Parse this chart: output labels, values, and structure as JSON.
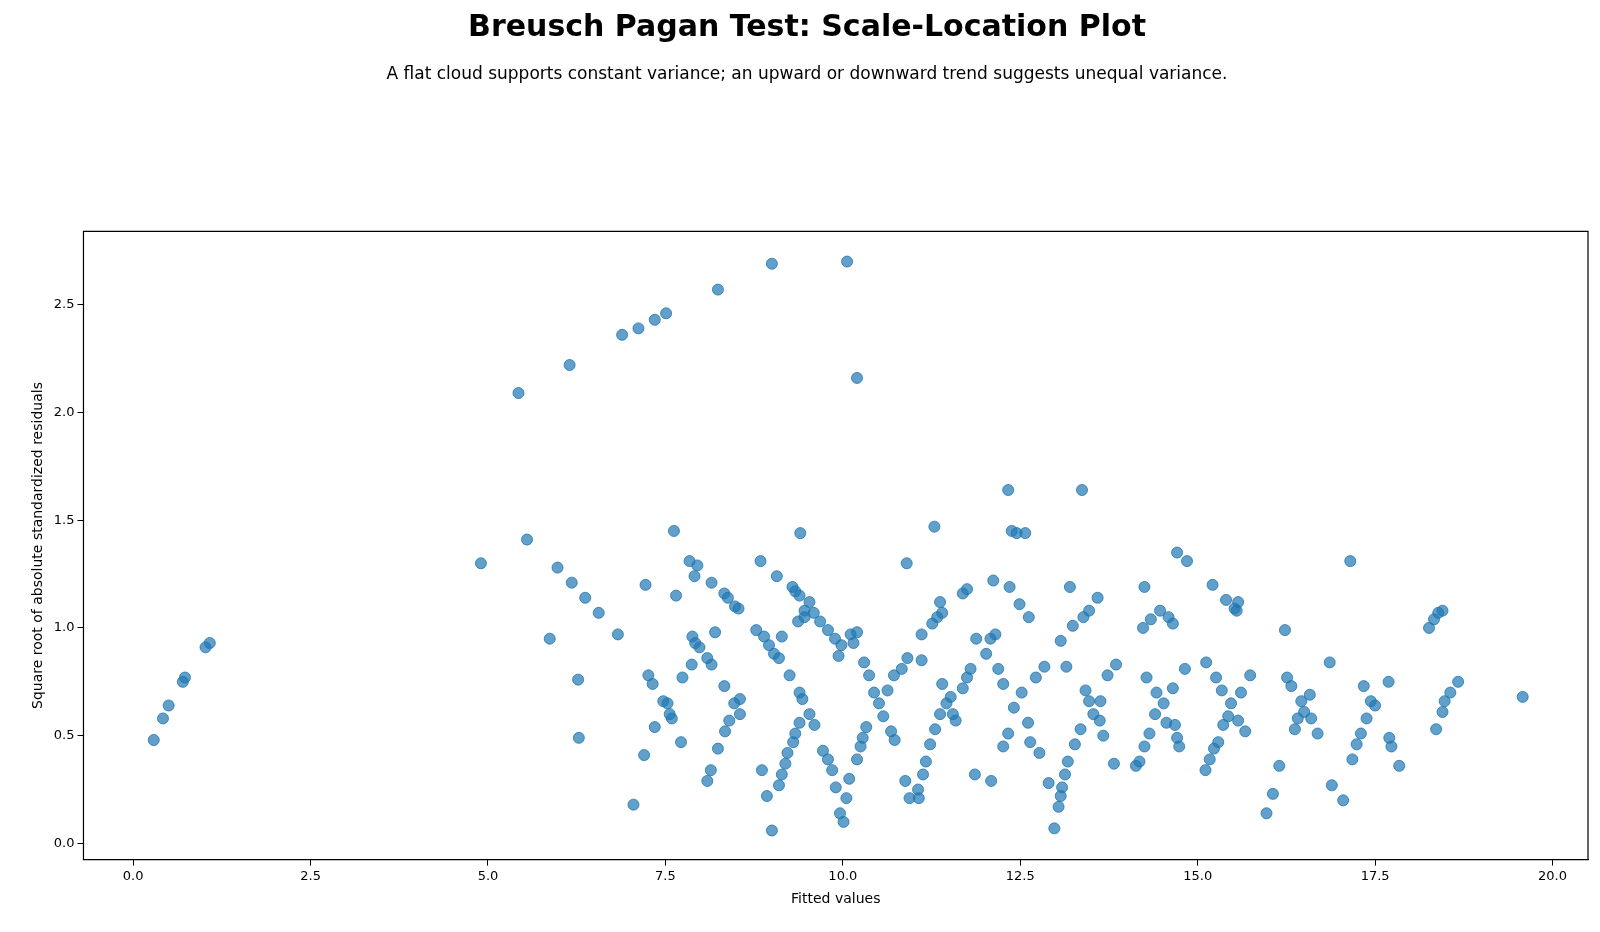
{
  "chart_data": {
    "type": "scatter",
    "title": "Breusch Pagan Test: Scale-Location Plot",
    "subtitle": "A flat cloud supports constant variance; an upward or downward trend suggests unequal variance.",
    "xlabel": "Fitted values",
    "ylabel": "Square root of absolute standardized residuals",
    "marker": "circle",
    "xlim": [
      -0.7,
      20.5
    ],
    "ylim": [
      -0.075,
      2.84
    ],
    "xticks": [
      {
        "value": 0,
        "label": "0.0"
      },
      {
        "value": 2.5,
        "label": "2.5"
      },
      {
        "value": 5,
        "label": "5.0"
      },
      {
        "value": 7.5,
        "label": "7.5"
      },
      {
        "value": 10,
        "label": "10.0"
      },
      {
        "value": 12.5,
        "label": "12.5"
      },
      {
        "value": 15,
        "label": "15.0"
      },
      {
        "value": 17.5,
        "label": "17.5"
      },
      {
        "value": 20,
        "label": "20.0"
      }
    ],
    "yticks": [
      {
        "value": 0,
        "label": "0.0"
      },
      {
        "value": 0.5,
        "label": "0.5"
      },
      {
        "value": 1,
        "label": "1.0"
      },
      {
        "value": 1.5,
        "label": "1.5"
      },
      {
        "value": 2,
        "label": "2.0"
      },
      {
        "value": 2.5,
        "label": "2.5"
      }
    ],
    "series": [
      {
        "color": "#1f77b4",
        "x": [
          0.29,
          0.42,
          0.5,
          0.7,
          0.73,
          1.02,
          1.08,
          4.9,
          5.43,
          5.55,
          5.87,
          5.98,
          6.15,
          6.18,
          6.27,
          6.28,
          6.37,
          6.56,
          6.83,
          6.89,
          7.05,
          7.12,
          7.22,
          7.2,
          7.26,
          7.32,
          7.35,
          7.35,
          7.47,
          7.51,
          7.53,
          7.56,
          7.59,
          7.62,
          7.65,
          7.72,
          7.74,
          7.84,
          7.87,
          7.88,
          7.91,
          7.95,
          7.92,
          7.98,
          8.09,
          8.09,
          8.14,
          8.15,
          8.2,
          8.15,
          8.24,
          8.24,
          8.33,
          8.33,
          8.38,
          8.34,
          8.4,
          8.47,
          8.48,
          8.53,
          8.55,
          8.55,
          8.78,
          8.84,
          8.86,
          8.93,
          8.89,
          8.96,
          9.0,
          9.0,
          9.03,
          9.1,
          9.07,
          9.1,
          9.14,
          9.14,
          9.19,
          9.22,
          9.25,
          9.29,
          9.3,
          9.33,
          9.33,
          9.37,
          9.39,
          9.39,
          9.4,
          9.39,
          9.43,
          9.46,
          9.46,
          9.53,
          9.53,
          9.59,
          9.6,
          9.68,
          9.72,
          9.79,
          9.79,
          9.85,
          9.89,
          9.9,
          9.94,
          9.96,
          9.98,
          10.01,
          10.06,
          10.05,
          10.09,
          10.11,
          10.15,
          10.2,
          10.2,
          10.2,
          10.25,
          10.28,
          10.33,
          10.3,
          10.37,
          10.44,
          10.51,
          10.57,
          10.63,
          10.68,
          10.73,
          10.72,
          10.83,
          10.88,
          10.9,
          10.94,
          10.91,
          11.06,
          11.07,
          11.11,
          11.13,
          11.17,
          11.11,
          11.23,
          11.26,
          11.29,
          11.3,
          11.33,
          11.37,
          11.37,
          11.4,
          11.4,
          11.46,
          11.52,
          11.55,
          11.59,
          11.69,
          11.75,
          11.69,
          11.75,
          11.8,
          11.86,
          11.88,
          12.02,
          12.09,
          12.08,
          12.12,
          12.15,
          12.19,
          12.26,
          12.26,
          12.33,
          12.35,
          12.38,
          12.45,
          12.41,
          12.33,
          12.49,
          12.57,
          12.52,
          12.61,
          12.62,
          12.64,
          12.72,
          12.77,
          12.84,
          12.9,
          12.98,
          13.04,
          13.07,
          13.09,
          13.07,
          13.13,
          13.15,
          13.17,
          13.2,
          13.24,
          13.27,
          13.35,
          13.39,
          13.37,
          13.42,
          13.47,
          13.47,
          13.53,
          13.59,
          13.62,
          13.63,
          13.67,
          13.73,
          13.82,
          13.85,
          14.13,
          14.18,
          14.23,
          14.25,
          14.25,
          14.28,
          14.34,
          14.32,
          14.4,
          14.42,
          14.47,
          14.52,
          14.56,
          14.59,
          14.65,
          14.68,
          14.65,
          14.71,
          14.71,
          14.74,
          14.82,
          14.85,
          15.11,
          15.12,
          15.17,
          15.21,
          15.23,
          15.26,
          15.29,
          15.34,
          15.36,
          15.4,
          15.43,
          15.47,
          15.52,
          15.57,
          15.55,
          15.57,
          15.61,
          15.67,
          15.74,
          15.97,
          16.06,
          16.15,
          16.23,
          16.26,
          16.32,
          16.37,
          16.41,
          16.46,
          16.5,
          16.58,
          16.6,
          16.69,
          16.86,
          16.89,
          17.05,
          17.15,
          17.18,
          17.24,
          17.3,
          17.34,
          17.38,
          17.44,
          17.5,
          17.69,
          17.7,
          17.73,
          17.84,
          18.26,
          18.33,
          18.39,
          18.45,
          18.36,
          18.45,
          18.48,
          18.56,
          18.67,
          19.58
        ],
        "values": [
          0.48,
          0.58,
          0.64,
          0.75,
          0.77,
          0.91,
          0.93,
          1.3,
          2.09,
          1.41,
          0.95,
          1.28,
          2.22,
          1.21,
          0.76,
          0.49,
          1.14,
          1.07,
          0.97,
          2.36,
          0.18,
          2.39,
          1.2,
          0.41,
          0.78,
          0.74,
          2.43,
          0.54,
          0.66,
          2.46,
          0.65,
          0.6,
          0.58,
          1.45,
          1.15,
          0.47,
          0.77,
          1.31,
          0.83,
          0.96,
          1.24,
          1.29,
          0.93,
          0.91,
          0.29,
          0.86,
          0.34,
          1.21,
          0.98,
          0.83,
          2.57,
          0.44,
          1.16,
          0.73,
          1.14,
          0.52,
          0.57,
          0.65,
          1.1,
          1.09,
          0.67,
          0.6,
          0.99,
          1.31,
          0.34,
          0.22,
          0.96,
          0.92,
          2.69,
          0.06,
          0.88,
          0.86,
          1.24,
          0.27,
          0.32,
          0.96,
          0.37,
          0.42,
          0.78,
          1.19,
          0.47,
          1.17,
          0.51,
          1.03,
          1.15,
          0.56,
          1.44,
          0.7,
          0.67,
          1.08,
          1.05,
          1.12,
          0.6,
          1.07,
          0.55,
          1.03,
          0.43,
          0.99,
          0.39,
          0.34,
          0.95,
          0.26,
          0.87,
          0.14,
          0.92,
          0.1,
          2.7,
          0.21,
          0.3,
          0.97,
          0.93,
          2.16,
          0.98,
          0.39,
          0.45,
          0.49,
          0.54,
          0.84,
          0.78,
          0.7,
          0.65,
          0.59,
          0.71,
          0.52,
          0.48,
          0.78,
          0.81,
          0.29,
          1.3,
          0.21,
          0.86,
          0.25,
          0.21,
          0.97,
          0.32,
          0.38,
          0.85,
          0.46,
          1.02,
          1.47,
          0.53,
          1.05,
          0.6,
          1.12,
          1.07,
          0.74,
          0.65,
          0.68,
          0.6,
          0.57,
          0.72,
          0.77,
          1.16,
          1.18,
          0.81,
          0.32,
          0.95,
          0.88,
          0.29,
          0.95,
          1.22,
          0.97,
          0.81,
          0.74,
          0.45,
          1.64,
          1.19,
          1.45,
          1.44,
          0.63,
          0.51,
          1.11,
          1.44,
          0.7,
          0.56,
          1.05,
          0.47,
          0.77,
          0.42,
          0.82,
          0.28,
          0.07,
          0.17,
          0.22,
          0.26,
          0.94,
          0.32,
          0.82,
          0.38,
          1.19,
          1.01,
          0.46,
          0.53,
          1.05,
          1.64,
          0.71,
          1.08,
          0.66,
          0.6,
          1.14,
          0.57,
          0.66,
          0.5,
          0.78,
          0.37,
          0.83,
          0.36,
          0.38,
          1.0,
          1.19,
          0.45,
          0.77,
          1.04,
          0.51,
          0.6,
          0.7,
          1.08,
          0.65,
          0.56,
          1.05,
          1.02,
          0.55,
          0.72,
          1.35,
          0.49,
          0.45,
          0.81,
          1.31,
          0.34,
          0.84,
          0.39,
          1.2,
          0.44,
          0.77,
          0.47,
          0.71,
          0.55,
          1.13,
          0.59,
          0.65,
          1.09,
          1.12,
          1.08,
          0.57,
          0.7,
          0.52,
          0.78,
          0.14,
          0.23,
          0.36,
          0.99,
          0.77,
          0.73,
          0.53,
          0.58,
          0.66,
          0.61,
          0.69,
          0.58,
          0.51,
          0.84,
          0.27,
          0.2,
          1.31,
          0.39,
          0.46,
          0.51,
          0.73,
          0.58,
          0.66,
          0.64,
          0.75,
          0.49,
          0.45,
          0.36,
          1.0,
          1.04,
          1.07,
          1.08,
          0.53,
          0.61,
          0.66,
          0.7,
          0.75,
          0.68
        ]
      }
    ]
  }
}
